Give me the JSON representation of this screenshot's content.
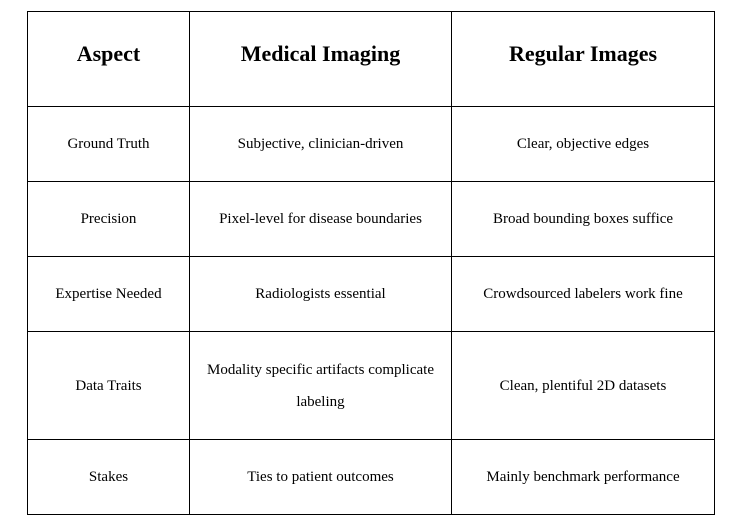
{
  "table": {
    "headers": [
      "Aspect",
      "Medical Imaging",
      "Regular Images"
    ],
    "rows": [
      [
        "Ground Truth",
        "Subjective, clinician-driven",
        "Clear, objective edges"
      ],
      [
        "Precision",
        "Pixel-level for disease boundaries",
        "Broad bounding boxes suffice"
      ],
      [
        "Expertise Needed",
        "Radiologists essential",
        "Crowdsourced labelers work fine"
      ],
      [
        "Data Traits",
        "Modality specific artifacts complicate labeling",
        "Clean, plentiful 2D datasets"
      ],
      [
        "Stakes",
        "Ties to patient outcomes",
        "Mainly benchmark performance"
      ]
    ]
  }
}
